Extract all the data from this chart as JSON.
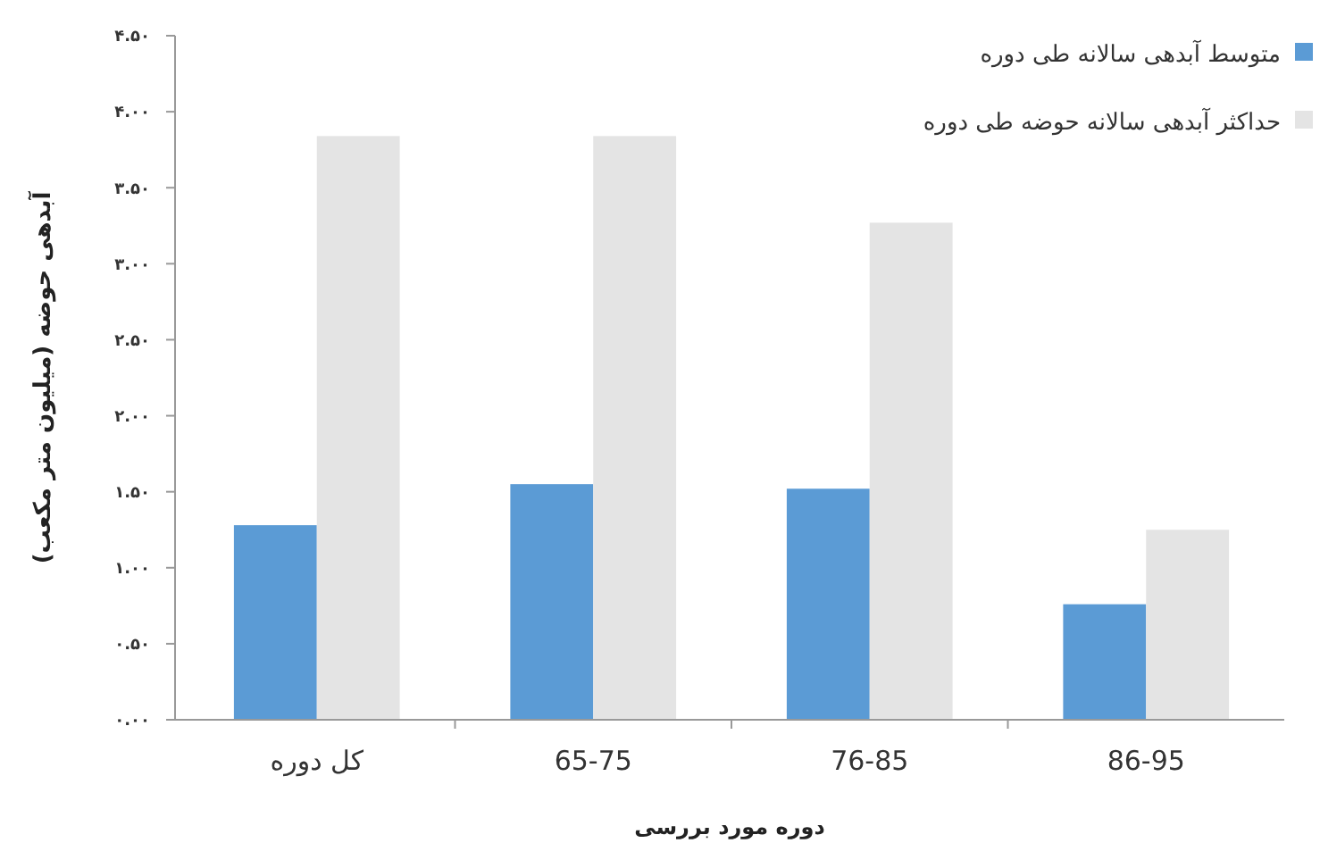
{
  "chart_data": {
    "type": "bar",
    "xlabel": "دوره مورد بررسی",
    "ylabel": "آبدهی حوضه (میلیون متر مکعب)",
    "categories": [
      "کل دوره",
      "65-75",
      "76-85",
      "86-95"
    ],
    "series": [
      {
        "name": "متوسط آبدهی سالانه طی دوره",
        "color": "#5b9bd5",
        "values": [
          1.28,
          1.55,
          1.52,
          0.76
        ]
      },
      {
        "name": "حداکثر آبدهی سالانه حوضه طی دوره",
        "color": "#e4e4e4",
        "values": [
          3.84,
          3.84,
          3.27,
          1.25
        ]
      }
    ],
    "ylim": [
      0,
      4.5
    ],
    "yticks": [
      {
        "value": 0,
        "label": "۰.۰۰"
      },
      {
        "value": 0.5,
        "label": "۰.۵۰"
      },
      {
        "value": 1,
        "label": "۱.۰۰"
      },
      {
        "value": 1.5,
        "label": "۱.۵۰"
      },
      {
        "value": 2,
        "label": "۲.۰۰"
      },
      {
        "value": 2.5,
        "label": "۲.۵۰"
      },
      {
        "value": 3,
        "label": "۳.۰۰"
      },
      {
        "value": 3.5,
        "label": "۳.۵۰"
      },
      {
        "value": 4,
        "label": "۴.۰۰"
      },
      {
        "value": 4.5,
        "label": "۴.۵۰"
      }
    ],
    "grid": false,
    "legend": "top right"
  }
}
